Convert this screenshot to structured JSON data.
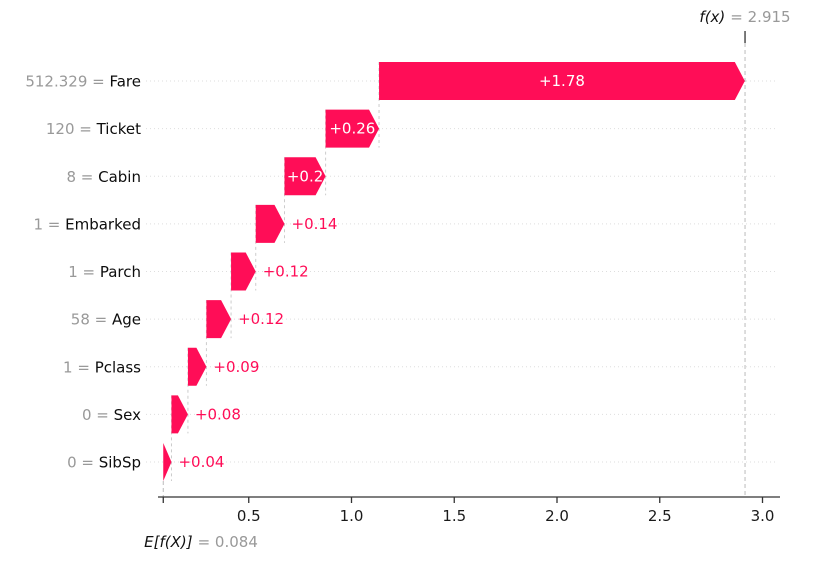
{
  "chart_data": {
    "type": "bar",
    "variant": "shap-waterfall",
    "title": "",
    "xlabel": "",
    "ylabel": "",
    "base_value": 0.084,
    "fx_value": 2.915,
    "header": {
      "prefix": "f(x)",
      "value": "= 2.915"
    },
    "footer": {
      "prefix": "E[f(X)]",
      "value": "= 0.084"
    },
    "features": [
      {
        "value_label": "512.329",
        "name": "Fare",
        "contribution": 1.78,
        "bar_label": "+1.78",
        "label_position": "inside"
      },
      {
        "value_label": "120",
        "name": "Ticket",
        "contribution": 0.26,
        "bar_label": "+0.26",
        "label_position": "inside"
      },
      {
        "value_label": "8",
        "name": "Cabin",
        "contribution": 0.2,
        "bar_label": "+0.2",
        "label_position": "inside"
      },
      {
        "value_label": "1",
        "name": "Embarked",
        "contribution": 0.14,
        "bar_label": "+0.14",
        "label_position": "outside"
      },
      {
        "value_label": "1",
        "name": "Parch",
        "contribution": 0.12,
        "bar_label": "+0.12",
        "label_position": "outside"
      },
      {
        "value_label": "58",
        "name": "Age",
        "contribution": 0.12,
        "bar_label": "+0.12",
        "label_position": "outside"
      },
      {
        "value_label": "1",
        "name": "Pclass",
        "contribution": 0.09,
        "bar_label": "+0.09",
        "label_position": "outside"
      },
      {
        "value_label": "0",
        "name": "Sex",
        "contribution": 0.08,
        "bar_label": "+0.08",
        "label_position": "outside"
      },
      {
        "value_label": "0",
        "name": "SibSp",
        "contribution": 0.04,
        "bar_label": "+0.04",
        "label_position": "outside"
      }
    ],
    "x_ticks": [
      0.5,
      1.0,
      1.5,
      2.0,
      2.5,
      3.0
    ],
    "x_tick_labels": [
      "0.5",
      "1.0",
      "1.5",
      "2.0",
      "2.5",
      "3.0"
    ],
    "xlim": [
      0.053,
      3.073
    ],
    "grid": "horizontal-dotted",
    "legend": "none",
    "colors": {
      "positive_bar": "#ff0d57",
      "bar_label_inside": "#ffffff",
      "bar_label_outside": "#ff0d57",
      "value_gray": "#999999",
      "feature_name": "#0d0d0d",
      "tick_label": "#1a1a1a",
      "axis": "#333333",
      "gridline": "#dedede",
      "connector": "#cccccc",
      "ref_line": "#bbbbbb"
    }
  }
}
